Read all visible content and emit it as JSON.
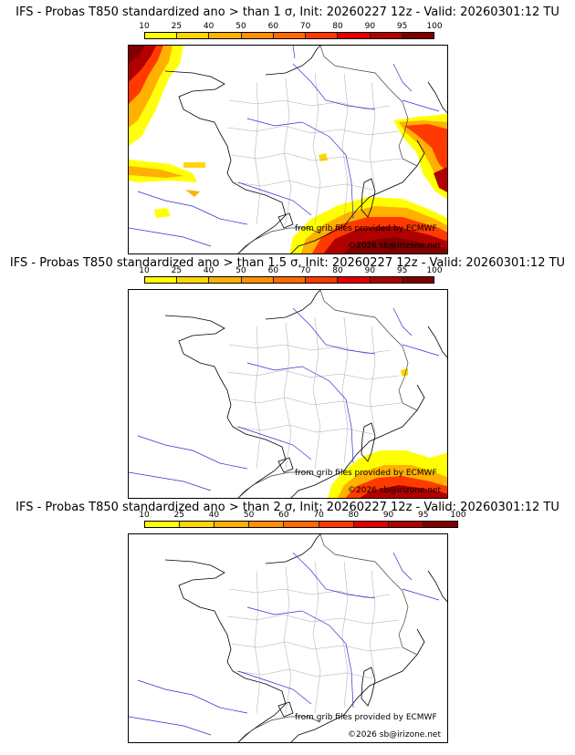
{
  "colorbar": {
    "ticks": [
      "10",
      "25",
      "40",
      "50",
      "60",
      "70",
      "80",
      "90",
      "95",
      "100"
    ],
    "colors": [
      "#ffff00",
      "#ffd700",
      "#ffb000",
      "#ff9000",
      "#ff6a00",
      "#ff3a00",
      "#e00000",
      "#b00000",
      "#800000"
    ]
  },
  "panels": [
    {
      "title": "IFS - Probas T850  standardized ano > than 1 σ, Init: 20260227 12z - Valid: 20260301:12 TU",
      "credit_source": "from grib files provided by ECMWF",
      "credit_copyright": "©2026 sb@irizone.net"
    },
    {
      "title": "IFS - Probas T850  standardized ano > than 1.5 σ, Init: 20260227 12z - Valid: 20260301:12 TU",
      "credit_source": "from grib files provided by ECMWF",
      "credit_copyright": "©2026 sb@irizone.net"
    },
    {
      "title": "IFS - Probas T850  standardized ano > than 2 σ, Init: 20260227 12z - Valid: 20260301:12 TU",
      "credit_source": "from grib files provided by ECMWF",
      "credit_copyright": "©2026 sb@irizone.net"
    }
  ]
}
